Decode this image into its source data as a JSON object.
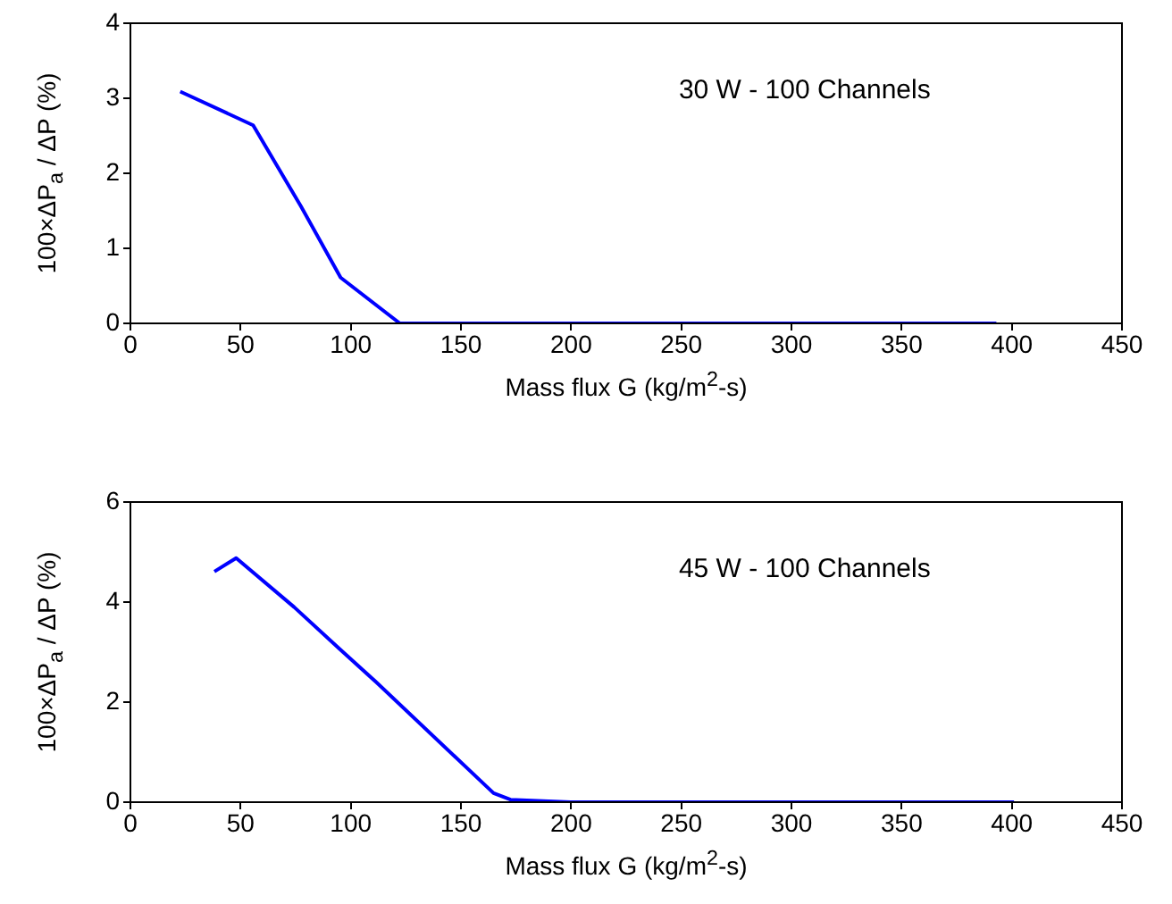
{
  "chart_data": [
    {
      "type": "line",
      "xlabel": "Mass flux G (kg/m$^{2}$-s)",
      "ylabel": "100×ΔP$_{a}$ / ΔP (%)",
      "annotations": [
        "30 W - 100 Channels"
      ],
      "x": [
        22.6,
        55.7,
        77.4,
        95.4,
        122.3,
        393
      ],
      "series": [
        {
          "color": "#0000ff",
          "values": [
            3.09,
            2.64,
            1.56,
            0.61,
            0,
            0
          ]
        }
      ],
      "xlim": [
        0,
        450
      ],
      "xticks": [
        0,
        50,
        100,
        150,
        200,
        250,
        300,
        350,
        400,
        450
      ],
      "ylim": [
        0,
        4
      ],
      "yticks": [
        0,
        1,
        2,
        3,
        4
      ],
      "grid": false,
      "legend": false,
      "marker": "none",
      "line_style": "solid"
    },
    {
      "type": "line",
      "xlabel": "Mass flux G (kg/m$^{2}$-s)",
      "ylabel": "100×ΔP$_{a}$ / ΔP (%)",
      "annotations": [
        "45 W - 100 Channels"
      ],
      "x": [
        38.1,
        48.0,
        74.3,
        94.5,
        111.5,
        164.8,
        172.5,
        199.7,
        401
      ],
      "series": [
        {
          "color": "#0000ff",
          "values": [
            4.61,
            4.88,
            3.9,
            3.08,
            2.4,
            0.18,
            0.05,
            0,
            0
          ]
        }
      ],
      "xlim": [
        0,
        450
      ],
      "xticks": [
        0,
        50,
        100,
        150,
        200,
        250,
        300,
        350,
        400,
        450
      ],
      "ylim": [
        0,
        6
      ],
      "yticks": [
        0,
        2,
        4,
        6
      ],
      "grid": false,
      "legend": false,
      "marker": "none",
      "line_style": "solid"
    }
  ]
}
